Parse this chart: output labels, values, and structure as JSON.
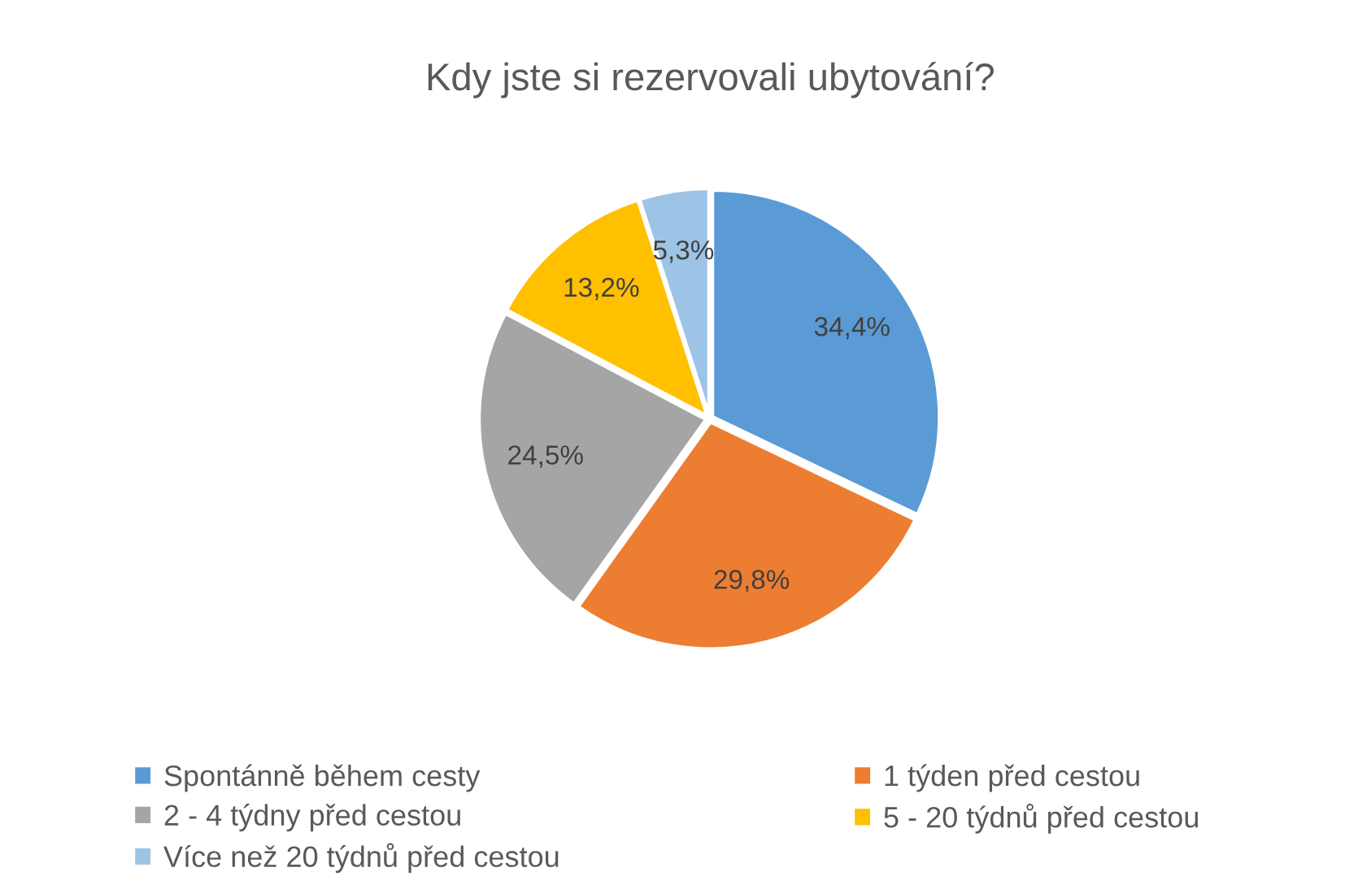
{
  "chart_data": {
    "type": "pie",
    "title": "Kdy jste si rezervovali ubytování?",
    "categories": [
      "Spontánně během cesty",
      "1 týden před cestou",
      "2 - 4 týdny před cestou",
      "5 - 20 týdnů před cestou",
      "Více než 20 týdnů před cestou"
    ],
    "values": [
      34.4,
      29.8,
      24.5,
      13.2,
      5.3
    ],
    "value_labels": [
      "34,4%",
      "29,8%",
      "24,5%",
      "13,2%",
      "5,3%"
    ],
    "colors": [
      "#5b9bd5",
      "#ed7d31",
      "#a5a5a5",
      "#ffc000",
      "#9dc3e6"
    ],
    "legend": "bottom"
  }
}
